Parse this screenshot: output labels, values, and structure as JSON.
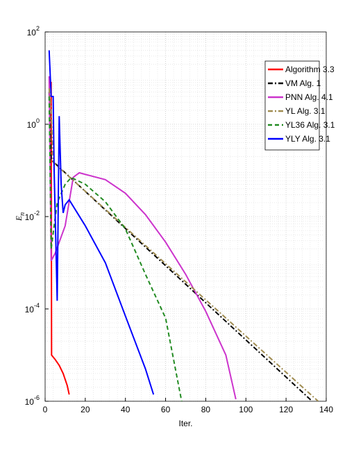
{
  "chart_data": {
    "type": "line",
    "xlabel": "Iter.",
    "ylabel": {
      "base": "E",
      "sub": "n"
    },
    "xlim": [
      0,
      140
    ],
    "xticks": [
      0,
      20,
      40,
      60,
      80,
      100,
      120,
      140
    ],
    "ylim": [
      1e-06,
      100
    ],
    "yticks": [
      {
        "value": 1e-06,
        "label": "10",
        "exponent": "-6"
      },
      {
        "value": 0.0001,
        "label": "10",
        "exponent": "-4"
      },
      {
        "value": 0.01,
        "label": "10",
        "exponent": "-2"
      },
      {
        "value": 1,
        "label": "10",
        "exponent": "0"
      },
      {
        "value": 100,
        "label": "10",
        "exponent": "2"
      }
    ],
    "log_y": true,
    "grid": true,
    "minor_grid": true,
    "legend": "northeast",
    "series": [
      {
        "name": "Algorithm 3.3",
        "color": "#ff0000",
        "style": "solid",
        "x": [
          2,
          3,
          3.2,
          5,
          7,
          9,
          11,
          12
        ],
        "values": [
          8,
          8,
          1e-05,
          8e-06,
          6e-06,
          4e-06,
          2.2e-06,
          1.4e-06
        ]
      },
      {
        "name": "VM Alg. 1",
        "color": "#000000",
        "style": "dashdot",
        "x": [
          2,
          3,
          133
        ],
        "values": [
          5,
          0.17,
          1e-06
        ]
      },
      {
        "name": "PNN Alg. 4.1",
        "color": "#cc33cc",
        "style": "solid",
        "x": [
          2,
          3,
          5,
          10,
          14,
          17,
          30,
          40,
          50,
          60,
          70,
          80,
          90,
          95
        ],
        "values": [
          11,
          0.0011,
          0.0016,
          0.0063,
          0.071,
          0.089,
          0.063,
          0.032,
          0.011,
          0.0028,
          0.00056,
          8.9e-05,
          1e-05,
          1.1e-06
        ]
      },
      {
        "name": "YL Alg. 3.1",
        "color": "#a08c50",
        "style": "dashdot",
        "x": [
          2,
          3,
          4,
          136
        ],
        "values": [
          6,
          2,
          0.15,
          1e-06
        ]
      },
      {
        "name": "YL36 Alg. 3.1",
        "color": "#228b22",
        "style": "dashed",
        "x": [
          2,
          3,
          6,
          10,
          13,
          20,
          30,
          40,
          50,
          60,
          68
        ],
        "values": [
          4,
          0.002,
          0.02,
          0.05,
          0.07,
          0.05,
          0.021,
          0.0054,
          0.00056,
          6.3e-05,
          1e-06
        ]
      },
      {
        "name": "YLY Alg. 3.1",
        "color": "#0000ff",
        "style": "solid",
        "x": [
          2,
          3,
          4,
          4.5,
          6,
          7,
          8,
          9,
          10,
          12,
          20,
          30,
          40,
          50,
          54
        ],
        "values": [
          40,
          4,
          4,
          0.1,
          0.00015,
          1.5,
          0.05,
          0.012,
          0.018,
          0.023,
          0.0063,
          0.001,
          7e-05,
          5e-06,
          1.4e-06
        ]
      }
    ]
  }
}
